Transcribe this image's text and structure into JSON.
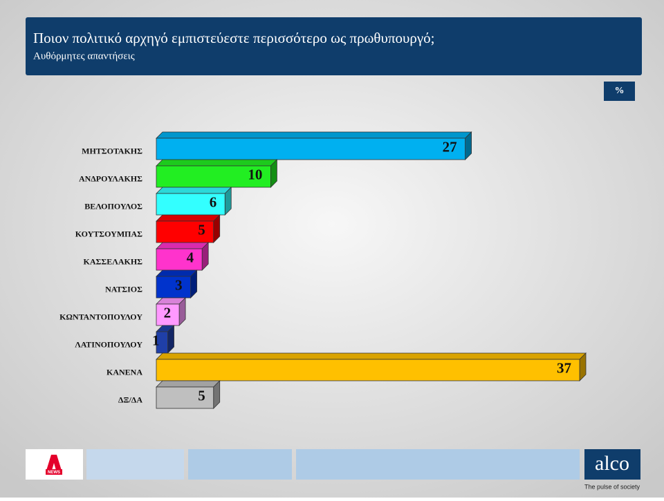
{
  "chart_data": {
    "type": "bar3d",
    "title": "Ποιον πολιτικό αρχηγό εμπιστεύεστε περισσότερο ως πρωθυπουργό;",
    "subtitle": "Αυθόρμητες απαντήσεις",
    "unit_label": "%",
    "categories": [
      "ΜΗΤΣΟΤΑΚΗΣ",
      "ΑΝΔΡΟΥΛΑΚΗΣ",
      "ΒΕΛΟΠΟΥΛΟΣ",
      "ΚΟΥΤΣΟΥΜΠΑΣ",
      "ΚΑΣΣΕΛΑΚΗΣ",
      "ΝΑΤΣΙΟΣ",
      "ΚΩΝΤΑΝΤΟΠΟΥΛΟΥ",
      "ΛΑΤΙΝΟΠΟΥΛΟΥ",
      "ΚΑΝΕΝΑ",
      "ΔΞ/ΔΑ"
    ],
    "values": [
      27,
      10,
      6,
      5,
      4,
      3,
      2,
      1,
      37,
      5
    ],
    "colors": [
      "#00b0f0",
      "#22ee22",
      "#33ffff",
      "#ff0000",
      "#ff33cc",
      "#0033cc",
      "#ff99ff",
      "#1f3fa8",
      "#ffc000",
      "#bfbfbf"
    ]
  },
  "footer": {
    "news_logo": "NEWS",
    "brand": "alco",
    "tagline": "The pulse of society"
  }
}
